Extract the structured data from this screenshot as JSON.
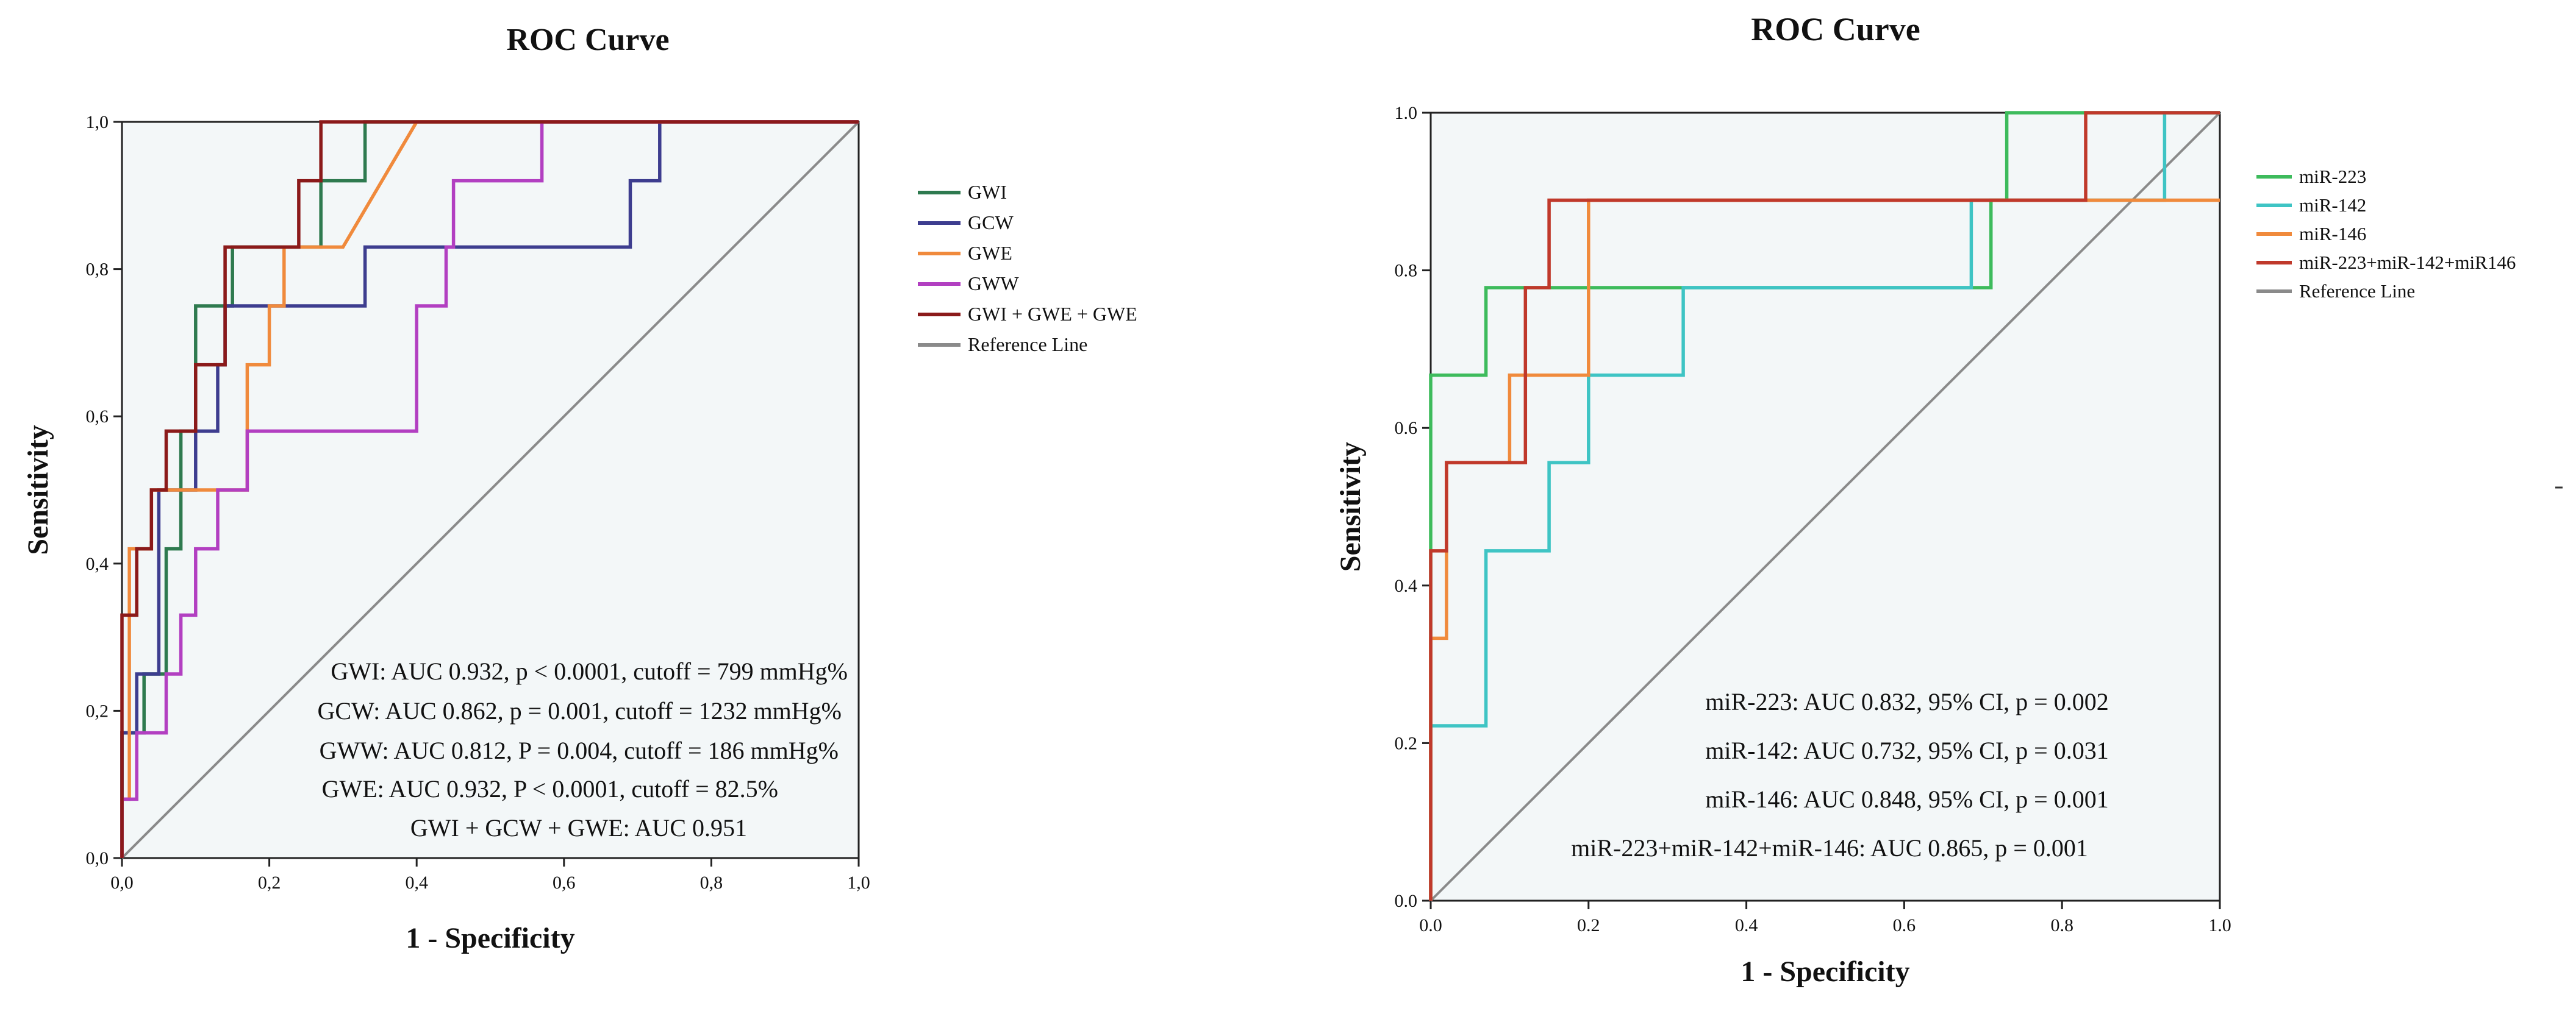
{
  "chart_data": [
    {
      "type": "line",
      "title": "ROC Curve",
      "xlabel": "1 - Specificity",
      "ylabel": "Sensitivity",
      "xlim": [
        0,
        1
      ],
      "ylim": [
        0,
        1
      ],
      "xticks": [
        "0,0",
        "0,2",
        "0,4",
        "0,6",
        "0,8",
        "1,0"
      ],
      "yticks": [
        "0,0",
        "0,2",
        "0,4",
        "0,6",
        "0,8",
        "1,0"
      ],
      "grid": false,
      "legend_position": "right-outside",
      "series": [
        {
          "name": "GWI",
          "color": "#2e7a4f",
          "x": [
            0,
            0,
            0.03,
            0.03,
            0.06,
            0.06,
            0.08,
            0.08,
            0.1,
            0.1,
            0.15,
            0.15,
            0.27,
            0.27,
            0.33,
            0.33,
            1.0
          ],
          "y": [
            0,
            0.17,
            0.17,
            0.25,
            0.25,
            0.42,
            0.42,
            0.58,
            0.58,
            0.75,
            0.75,
            0.83,
            0.83,
            0.92,
            0.92,
            1.0,
            1.0
          ]
        },
        {
          "name": "GCW",
          "color": "#3d3d8f",
          "x": [
            0,
            0,
            0.02,
            0.02,
            0.05,
            0.05,
            0.1,
            0.1,
            0.13,
            0.13,
            0.14,
            0.14,
            0.33,
            0.33,
            0.69,
            0.69,
            0.73,
            0.73,
            1.0
          ],
          "y": [
            0,
            0.17,
            0.17,
            0.25,
            0.25,
            0.5,
            0.5,
            0.58,
            0.58,
            0.67,
            0.67,
            0.75,
            0.75,
            0.83,
            0.83,
            0.92,
            0.92,
            1.0,
            1.0
          ]
        },
        {
          "name": "GWE",
          "color": "#f08a3c",
          "x": [
            0,
            0,
            0.01,
            0.01,
            0.04,
            0.04,
            0.17,
            0.17,
            0.2,
            0.2,
            0.22,
            0.22,
            0.3,
            0.4,
            1.0
          ],
          "y": [
            0,
            0.08,
            0.08,
            0.42,
            0.42,
            0.5,
            0.5,
            0.67,
            0.67,
            0.75,
            0.75,
            0.83,
            0.83,
            1.0,
            1.0
          ]
        },
        {
          "name": "GWW",
          "color": "#b23fc1",
          "x": [
            0,
            0,
            0.02,
            0.02,
            0.06,
            0.06,
            0.08,
            0.08,
            0.1,
            0.1,
            0.13,
            0.13,
            0.17,
            0.17,
            0.19,
            0.4,
            0.4,
            0.44,
            0.44,
            0.45,
            0.45,
            0.57,
            0.57,
            1.0
          ],
          "y": [
            0,
            0.08,
            0.08,
            0.17,
            0.17,
            0.25,
            0.25,
            0.33,
            0.33,
            0.42,
            0.42,
            0.5,
            0.5,
            0.58,
            0.58,
            0.58,
            0.75,
            0.75,
            0.83,
            0.83,
            0.92,
            0.92,
            1.0,
            1.0
          ]
        },
        {
          "name": "GWI + GWE + GWE",
          "color": "#8b1a1a",
          "x": [
            0,
            0,
            0.02,
            0.02,
            0.04,
            0.04,
            0.06,
            0.06,
            0.1,
            0.1,
            0.14,
            0.14,
            0.24,
            0.24,
            0.27,
            0.27,
            1.0
          ],
          "y": [
            0,
            0.33,
            0.33,
            0.42,
            0.42,
            0.5,
            0.5,
            0.58,
            0.58,
            0.67,
            0.67,
            0.83,
            0.83,
            0.92,
            0.92,
            1.0,
            1.0
          ]
        },
        {
          "name": "Reference Line",
          "color": "#8a8a8a",
          "x": [
            0,
            1
          ],
          "y": [
            0,
            1
          ]
        }
      ],
      "annotations": [
        "GWI: AUC 0.932, p < 0.0001, cutoff = 799 mmHg%",
        "GCW: AUC 0.862, p =  0.001, cutoff = 1232 mmHg%",
        "GWW: AUC 0.812, P = 0.004, cutoff  = 186 mmHg%",
        "GWE: AUC 0.932, P < 0.0001, cutoff = 82.5%",
        "GWI + GCW + GWE: AUC 0.951"
      ]
    },
    {
      "type": "line",
      "title": "ROC Curve",
      "xlabel": "1 - Specificity",
      "ylabel": "Sensitivity",
      "xlim": [
        0,
        1
      ],
      "ylim": [
        0,
        1
      ],
      "xticks": [
        "0.0",
        "0.2",
        "0.4",
        "0.6",
        "0.8",
        "1.0"
      ],
      "yticks": [
        "0.0",
        "0.2",
        "0.4",
        "0.6",
        "0.8",
        "1.0"
      ],
      "grid": false,
      "legend_position": "right-outside",
      "series": [
        {
          "name": "miR-223",
          "color": "#3dbb5c",
          "x": [
            0,
            0,
            0.07,
            0.07,
            0.71,
            0.71,
            0.73,
            0.73,
            1.0
          ],
          "y": [
            0,
            0.667,
            0.667,
            0.778,
            0.778,
            0.889,
            0.889,
            1.0,
            1.0
          ]
        },
        {
          "name": "miR-142",
          "color": "#3ec4c4",
          "x": [
            0,
            0,
            0.07,
            0.07,
            0.15,
            0.15,
            0.2,
            0.2,
            0.32,
            0.32,
            0.685,
            0.685,
            0.93,
            0.93,
            1.0
          ],
          "y": [
            0,
            0.222,
            0.222,
            0.444,
            0.444,
            0.556,
            0.556,
            0.667,
            0.667,
            0.778,
            0.778,
            0.889,
            0.889,
            1.0,
            1.0
          ]
        },
        {
          "name": "miR-146",
          "color": "#f08a3c",
          "x": [
            0,
            0,
            0.02,
            0.02,
            0.1,
            0.1,
            0.2,
            0.2,
            1.0
          ],
          "y": [
            0,
            0.333,
            0.333,
            0.556,
            0.556,
            0.667,
            0.667,
            0.889,
            0.889
          ]
        },
        {
          "name": "miR-223+miR-142+miR146",
          "color": "#c0392b",
          "x": [
            0,
            0,
            0.02,
            0.02,
            0.12,
            0.12,
            0.15,
            0.15,
            0.83,
            0.83,
            1.0
          ],
          "y": [
            0,
            0.444,
            0.444,
            0.556,
            0.556,
            0.778,
            0.778,
            0.889,
            0.889,
            1.0,
            1.0
          ]
        },
        {
          "name": "Reference Line",
          "color": "#8a8a8a",
          "x": [
            0,
            1
          ],
          "y": [
            0,
            1
          ]
        }
      ],
      "annotations": [
        "miR-223: AUC 0.832, 95% CI, p = 0.002",
        "miR-142: AUC 0.732, 95% CI, p = 0.031",
        "miR-146: AUC 0.848, 95% CI, p = 0.001",
        "miR-223+miR-142+miR-146: AUC 0.865, p = 0.001"
      ]
    }
  ]
}
